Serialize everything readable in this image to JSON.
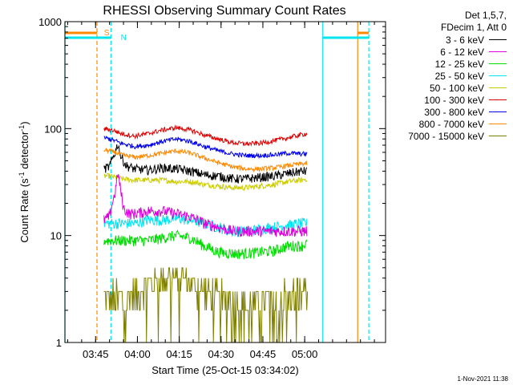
{
  "chart_data": {
    "type": "line",
    "title": "RHESSI Observing Summary Count Rates",
    "xlabel": "Start Time (25-Oct-15 03:34:02)",
    "ylabel_main": "Count Rate (s",
    "ylabel_sup1": "-1",
    "ylabel_mid": " detector",
    "ylabel_sup2": "-1",
    "ylabel_end": ")",
    "x_unit": "minutes after 03:34:02",
    "xlim": [
      0,
      115
    ],
    "ylim": [
      1,
      1000
    ],
    "y_scale": "log",
    "y_ticks": [
      1,
      10,
      100,
      1000
    ],
    "y_tick_labels": [
      "1",
      "10",
      "100",
      "1000"
    ],
    "x_ticks": [
      {
        "t": 11,
        "label": "03:45"
      },
      {
        "t": 26,
        "label": "04:00"
      },
      {
        "t": 41,
        "label": "04:15"
      },
      {
        "t": 56,
        "label": "04:30"
      },
      {
        "t": 71,
        "label": "04:45"
      },
      {
        "t": 86,
        "label": "05:00"
      }
    ],
    "series": [
      {
        "name": "3 - 6 keV",
        "color": "#000000",
        "noise": 0.1,
        "points": [
          [
            14,
            42
          ],
          [
            16,
            44
          ],
          [
            18,
            60
          ],
          [
            19,
            72
          ],
          [
            20,
            55
          ],
          [
            22,
            45
          ],
          [
            25,
            42
          ],
          [
            30,
            41
          ],
          [
            35,
            43
          ],
          [
            40,
            42
          ],
          [
            45,
            40
          ],
          [
            50,
            37
          ],
          [
            55,
            36
          ],
          [
            60,
            34
          ],
          [
            65,
            34
          ],
          [
            70,
            35
          ],
          [
            75,
            36
          ],
          [
            80,
            38
          ],
          [
            85,
            40
          ],
          [
            87,
            40
          ]
        ]
      },
      {
        "name": "6 - 12 keV",
        "color": "#dd00dd",
        "noise": 0.12,
        "points": [
          [
            14,
            14
          ],
          [
            16,
            15
          ],
          [
            18,
            25
          ],
          [
            19,
            38
          ],
          [
            20,
            26
          ],
          [
            21,
            18
          ],
          [
            23,
            16
          ],
          [
            25,
            16
          ],
          [
            30,
            17
          ],
          [
            35,
            17
          ],
          [
            40,
            16
          ],
          [
            45,
            15
          ],
          [
            50,
            13
          ],
          [
            55,
            12
          ],
          [
            60,
            11
          ],
          [
            65,
            11
          ],
          [
            70,
            11
          ],
          [
            75,
            11
          ],
          [
            80,
            11
          ],
          [
            85,
            11
          ],
          [
            87,
            11
          ]
        ]
      },
      {
        "name": "12 - 25 keV",
        "color": "#00dd00",
        "noise": 0.12,
        "points": [
          [
            14,
            9
          ],
          [
            16,
            9
          ],
          [
            18,
            9
          ],
          [
            20,
            9
          ],
          [
            25,
            9
          ],
          [
            30,
            9
          ],
          [
            35,
            9.5
          ],
          [
            40,
            10
          ],
          [
            45,
            9.5
          ],
          [
            50,
            8
          ],
          [
            55,
            7
          ],
          [
            60,
            6.8
          ],
          [
            65,
            6.8
          ],
          [
            70,
            7
          ],
          [
            75,
            7.2
          ],
          [
            80,
            8
          ],
          [
            85,
            8
          ],
          [
            87,
            8.5
          ]
        ]
      },
      {
        "name": "25 - 50 keV",
        "color": "#00e5ee",
        "noise": 0.12,
        "points": [
          [
            14,
            13
          ],
          [
            16,
            13
          ],
          [
            18,
            13
          ],
          [
            20,
            13
          ],
          [
            25,
            13
          ],
          [
            30,
            14
          ],
          [
            35,
            14
          ],
          [
            40,
            14.5
          ],
          [
            45,
            14
          ],
          [
            50,
            13
          ],
          [
            55,
            12
          ],
          [
            60,
            11
          ],
          [
            65,
            11
          ],
          [
            70,
            11.5
          ],
          [
            75,
            12
          ],
          [
            80,
            12.5
          ],
          [
            85,
            13
          ],
          [
            87,
            13
          ]
        ]
      },
      {
        "name": "50 - 100 keV",
        "color": "#cccc00",
        "noise": 0.06,
        "points": [
          [
            14,
            36
          ],
          [
            16,
            36
          ],
          [
            18,
            35
          ],
          [
            20,
            34
          ],
          [
            25,
            33
          ],
          [
            30,
            33
          ],
          [
            35,
            33
          ],
          [
            40,
            32
          ],
          [
            45,
            32
          ],
          [
            50,
            30
          ],
          [
            55,
            29
          ],
          [
            60,
            28
          ],
          [
            65,
            28
          ],
          [
            70,
            29
          ],
          [
            75,
            30
          ],
          [
            80,
            32
          ],
          [
            85,
            33
          ],
          [
            87,
            34
          ]
        ]
      },
      {
        "name": "100 - 300 keV",
        "color": "#dd0000",
        "noise": 0.05,
        "points": [
          [
            14,
            100
          ],
          [
            16,
            98
          ],
          [
            18,
            95
          ],
          [
            20,
            90
          ],
          [
            25,
            85
          ],
          [
            30,
            90
          ],
          [
            35,
            97
          ],
          [
            40,
            102
          ],
          [
            45,
            97
          ],
          [
            50,
            87
          ],
          [
            55,
            80
          ],
          [
            60,
            74
          ],
          [
            65,
            72
          ],
          [
            70,
            73
          ],
          [
            75,
            77
          ],
          [
            80,
            82
          ],
          [
            85,
            88
          ],
          [
            87,
            90
          ]
        ]
      },
      {
        "name": "300 - 800 keV",
        "color": "#0000ee",
        "noise": 0.05,
        "points": [
          [
            14,
            82
          ],
          [
            16,
            80
          ],
          [
            18,
            77
          ],
          [
            20,
            73
          ],
          [
            25,
            68
          ],
          [
            30,
            70
          ],
          [
            35,
            76
          ],
          [
            40,
            80
          ],
          [
            45,
            76
          ],
          [
            50,
            68
          ],
          [
            55,
            62
          ],
          [
            60,
            58
          ],
          [
            65,
            56
          ],
          [
            70,
            56
          ],
          [
            75,
            57
          ],
          [
            80,
            59
          ],
          [
            85,
            58
          ],
          [
            87,
            58
          ]
        ]
      },
      {
        "name": "800 - 7000 keV",
        "color": "#ff8800",
        "noise": 0.05,
        "points": [
          [
            14,
            63
          ],
          [
            16,
            62
          ],
          [
            18,
            60
          ],
          [
            20,
            57
          ],
          [
            25,
            54
          ],
          [
            30,
            56
          ],
          [
            35,
            59
          ],
          [
            40,
            62
          ],
          [
            45,
            59
          ],
          [
            50,
            53
          ],
          [
            55,
            48
          ],
          [
            60,
            44
          ],
          [
            65,
            42
          ],
          [
            70,
            42
          ],
          [
            75,
            43
          ],
          [
            80,
            45
          ],
          [
            85,
            47
          ],
          [
            87,
            47
          ]
        ]
      },
      {
        "name": "7000 - 15000 keV",
        "color": "#808000",
        "noise": 0.0,
        "points": [
          [
            14,
            2.5
          ],
          [
            18,
            2.5
          ],
          [
            22,
            2.5
          ],
          [
            26,
            3.0
          ],
          [
            30,
            3.5
          ],
          [
            35,
            4.0
          ],
          [
            40,
            4.2
          ],
          [
            45,
            3.8
          ],
          [
            50,
            3.0
          ],
          [
            55,
            2.5
          ],
          [
            60,
            2.3
          ],
          [
            65,
            2.3
          ],
          [
            70,
            2.3
          ],
          [
            75,
            2.4
          ],
          [
            80,
            2.6
          ],
          [
            85,
            3.0
          ],
          [
            87,
            3.2
          ]
        ]
      }
    ],
    "markers": [
      {
        "t": 0.0,
        "color": "#00e5ee",
        "dashed": false
      },
      {
        "t": 11.5,
        "color": "#ff8800",
        "dashed": true
      },
      {
        "t": 16.5,
        "color": "#00e5ee",
        "dashed": true
      },
      {
        "t": 92.5,
        "color": "#00e5ee",
        "dashed": false
      },
      {
        "t": 105,
        "color": "#ff8800",
        "dashed": false
      },
      {
        "t": 109,
        "color": "#00e5ee",
        "dashed": true
      }
    ],
    "flag_letters": [
      {
        "letter": "S",
        "t": 14.0,
        "color": "#ff8800"
      },
      {
        "letter": "N",
        "t": 20.0,
        "color": "#00e5ee"
      }
    ]
  },
  "legend": {
    "header_lines": [
      "Det 1,5,7,",
      "FDecim 1, Att 0"
    ]
  },
  "footer": "1-Nov-2021 11:38"
}
